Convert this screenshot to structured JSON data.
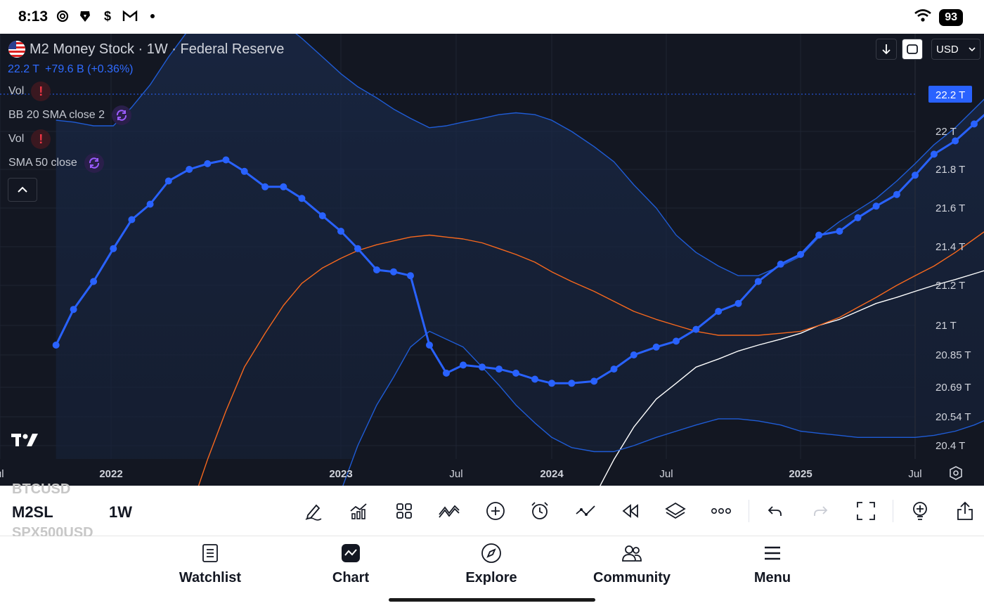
{
  "status_bar": {
    "time": "8:13",
    "battery": "93",
    "icons": [
      "openai-icon",
      "brave-icon",
      "dollar-icon",
      "gmail-icon",
      "dot-icon",
      "wifi-icon"
    ]
  },
  "chart_header": {
    "title": "M2 Money Stock · 1W · Federal Reserve",
    "last_value": "22.2 T",
    "change": "+79.6 B (+0.36%)",
    "indicators": [
      {
        "label": "Vol",
        "status": "error"
      },
      {
        "label": "BB 20 SMA close 2",
        "status": "loading"
      },
      {
        "label": "Vol",
        "status": "error"
      },
      {
        "label": "SMA 50 close",
        "status": "loading"
      }
    ],
    "currency": "USD"
  },
  "chart_data": {
    "type": "line",
    "title": "M2 Money Stock · 1W · Federal Reserve",
    "y_unit": "T",
    "yticks": [
      "22 T",
      "21.8 T",
      "21.6 T",
      "21.4 T",
      "21.2 T",
      "21 T",
      "20.85 T",
      "20.69 T",
      "20.54 T",
      "20.4 T"
    ],
    "xticks": [
      "Jul",
      "2022",
      "2023",
      "Jul",
      "2024",
      "Jul",
      "2025",
      "Jul"
    ],
    "last_price_label": "22.2 T",
    "series": [
      {
        "name": "M2SL",
        "color": "#2962ff",
        "markers": true,
        "points": [
          [
            2021.78,
            20.9
          ],
          [
            2021.85,
            21.08
          ],
          [
            2021.93,
            21.22
          ],
          [
            2022.01,
            21.39
          ],
          [
            2022.09,
            21.54
          ],
          [
            2022.17,
            21.62
          ],
          [
            2022.25,
            21.74
          ],
          [
            2022.34,
            21.8
          ],
          [
            2022.42,
            21.83
          ],
          [
            2022.5,
            21.85
          ],
          [
            2022.58,
            21.79
          ],
          [
            2022.67,
            21.71
          ],
          [
            2022.75,
            21.71
          ],
          [
            2022.83,
            21.65
          ],
          [
            2022.92,
            21.56
          ],
          [
            2023.0,
            21.48
          ],
          [
            2023.08,
            21.39
          ],
          [
            2023.17,
            21.28
          ],
          [
            2023.25,
            21.27
          ],
          [
            2023.33,
            21.25
          ],
          [
            2023.42,
            20.9
          ],
          [
            2023.5,
            20.76
          ],
          [
            2023.58,
            20.8
          ],
          [
            2023.67,
            20.79
          ],
          [
            2023.75,
            20.78
          ],
          [
            2023.83,
            20.76
          ],
          [
            2023.92,
            20.73
          ],
          [
            2024.0,
            20.71
          ],
          [
            2024.08,
            20.71
          ],
          [
            2024.17,
            20.72
          ],
          [
            2024.25,
            20.78
          ],
          [
            2024.33,
            20.85
          ],
          [
            2024.42,
            20.89
          ],
          [
            2024.5,
            20.92
          ],
          [
            2024.58,
            20.98
          ],
          [
            2024.67,
            21.07
          ],
          [
            2024.75,
            21.11
          ],
          [
            2024.83,
            21.22
          ],
          [
            2024.92,
            21.31
          ],
          [
            2025.0,
            21.36
          ],
          [
            2025.08,
            21.46
          ],
          [
            2025.17,
            21.48
          ],
          [
            2025.25,
            21.55
          ],
          [
            2025.33,
            21.61
          ],
          [
            2025.42,
            21.67
          ],
          [
            2025.5,
            21.77
          ],
          [
            2025.58,
            21.88
          ],
          [
            2025.67,
            21.95
          ],
          [
            2025.75,
            22.04
          ],
          [
            2025.83,
            22.13
          ],
          [
            2025.92,
            22.2
          ]
        ]
      },
      {
        "name": "BB upper",
        "color": "#1f5cd6",
        "points": [
          [
            2021.78,
            22.06
          ],
          [
            2021.85,
            22.05
          ],
          [
            2021.93,
            22.03
          ],
          [
            2022.01,
            22.03
          ],
          [
            2022.09,
            22.13
          ],
          [
            2022.17,
            22.25
          ],
          [
            2022.25,
            22.4
          ],
          [
            2022.34,
            22.55
          ],
          [
            2022.42,
            22.7
          ],
          [
            2022.5,
            22.72
          ],
          [
            2022.58,
            22.68
          ],
          [
            2022.67,
            22.63
          ],
          [
            2022.75,
            22.58
          ],
          [
            2022.83,
            22.5
          ],
          [
            2022.92,
            22.4
          ],
          [
            2023.0,
            22.31
          ],
          [
            2023.08,
            22.24
          ],
          [
            2023.17,
            22.18
          ],
          [
            2023.25,
            22.12
          ],
          [
            2023.33,
            22.07
          ],
          [
            2023.42,
            22.02
          ],
          [
            2023.5,
            22.03
          ],
          [
            2023.58,
            22.05
          ],
          [
            2023.67,
            22.07
          ],
          [
            2023.75,
            22.09
          ],
          [
            2023.83,
            22.1
          ],
          [
            2023.92,
            22.09
          ],
          [
            2024.0,
            22.06
          ],
          [
            2024.08,
            22.0
          ],
          [
            2024.17,
            21.92
          ],
          [
            2024.25,
            21.84
          ],
          [
            2024.33,
            21.72
          ],
          [
            2024.42,
            21.6
          ],
          [
            2024.5,
            21.46
          ],
          [
            2024.58,
            21.37
          ],
          [
            2024.67,
            21.3
          ],
          [
            2024.75,
            21.25
          ],
          [
            2024.83,
            21.25
          ],
          [
            2024.92,
            21.3
          ],
          [
            2025.0,
            21.35
          ],
          [
            2025.08,
            21.45
          ],
          [
            2025.17,
            21.53
          ],
          [
            2025.25,
            21.59
          ],
          [
            2025.33,
            21.65
          ],
          [
            2025.42,
            21.74
          ],
          [
            2025.5,
            21.83
          ],
          [
            2025.58,
            21.93
          ],
          [
            2025.67,
            22.02
          ],
          [
            2025.75,
            22.12
          ],
          [
            2025.83,
            22.22
          ],
          [
            2025.92,
            22.28
          ]
        ]
      },
      {
        "name": "BB lower",
        "color": "#1f5cd6",
        "points": [
          [
            2022.92,
            19.95
          ],
          [
            2023.0,
            20.17
          ],
          [
            2023.08,
            20.4
          ],
          [
            2023.17,
            20.6
          ],
          [
            2023.25,
            20.74
          ],
          [
            2023.33,
            20.89
          ],
          [
            2023.42,
            20.97
          ],
          [
            2023.5,
            20.93
          ],
          [
            2023.58,
            20.89
          ],
          [
            2023.67,
            20.79
          ],
          [
            2023.75,
            20.7
          ],
          [
            2023.83,
            20.6
          ],
          [
            2023.92,
            20.51
          ],
          [
            2024.0,
            20.44
          ],
          [
            2024.08,
            20.39
          ],
          [
            2024.17,
            20.37
          ],
          [
            2024.25,
            20.37
          ],
          [
            2024.33,
            20.4
          ],
          [
            2024.42,
            20.44
          ],
          [
            2024.5,
            20.47
          ],
          [
            2024.58,
            20.5
          ],
          [
            2024.67,
            20.53
          ],
          [
            2024.75,
            20.53
          ],
          [
            2024.83,
            20.52
          ],
          [
            2024.92,
            20.5
          ],
          [
            2025.0,
            20.47
          ],
          [
            2025.08,
            20.46
          ],
          [
            2025.17,
            20.45
          ],
          [
            2025.25,
            20.44
          ],
          [
            2025.33,
            20.44
          ],
          [
            2025.42,
            20.44
          ],
          [
            2025.5,
            20.44
          ],
          [
            2025.58,
            20.45
          ],
          [
            2025.67,
            20.47
          ],
          [
            2025.75,
            20.5
          ],
          [
            2025.83,
            20.54
          ],
          [
            2025.92,
            20.58
          ]
        ]
      },
      {
        "name": "BB basis",
        "color": "#f7681d",
        "points": [
          [
            2022.17,
            19.55
          ],
          [
            2022.25,
            19.78
          ],
          [
            2022.34,
            20.06
          ],
          [
            2022.42,
            20.33
          ],
          [
            2022.5,
            20.57
          ],
          [
            2022.58,
            20.79
          ],
          [
            2022.67,
            20.96
          ],
          [
            2022.75,
            21.1
          ],
          [
            2022.83,
            21.21
          ],
          [
            2022.92,
            21.29
          ],
          [
            2023.0,
            21.34
          ],
          [
            2023.08,
            21.38
          ],
          [
            2023.17,
            21.41
          ],
          [
            2023.25,
            21.43
          ],
          [
            2023.33,
            21.45
          ],
          [
            2023.42,
            21.46
          ],
          [
            2023.5,
            21.45
          ],
          [
            2023.58,
            21.44
          ],
          [
            2023.67,
            21.42
          ],
          [
            2023.75,
            21.39
          ],
          [
            2023.83,
            21.36
          ],
          [
            2023.92,
            21.32
          ],
          [
            2024.0,
            21.27
          ],
          [
            2024.08,
            21.22
          ],
          [
            2024.17,
            21.17
          ],
          [
            2024.25,
            21.12
          ],
          [
            2024.33,
            21.07
          ],
          [
            2024.42,
            21.03
          ],
          [
            2024.5,
            21.0
          ],
          [
            2024.58,
            20.97
          ],
          [
            2024.67,
            20.95
          ],
          [
            2024.75,
            20.95
          ],
          [
            2024.83,
            20.95
          ],
          [
            2024.92,
            20.96
          ],
          [
            2025.0,
            20.97
          ],
          [
            2025.08,
            21.0
          ],
          [
            2025.17,
            21.04
          ],
          [
            2025.25,
            21.09
          ],
          [
            2025.33,
            21.14
          ],
          [
            2025.42,
            21.2
          ],
          [
            2025.5,
            21.25
          ],
          [
            2025.58,
            21.3
          ],
          [
            2025.67,
            21.37
          ],
          [
            2025.75,
            21.44
          ],
          [
            2025.83,
            21.51
          ],
          [
            2025.92,
            21.58
          ]
        ]
      },
      {
        "name": "SMA 50",
        "color": "#ffffff",
        "points": [
          [
            2024.17,
            20.14
          ],
          [
            2024.25,
            20.33
          ],
          [
            2024.33,
            20.49
          ],
          [
            2024.42,
            20.63
          ],
          [
            2024.5,
            20.71
          ],
          [
            2024.58,
            20.79
          ],
          [
            2024.67,
            20.83
          ],
          [
            2024.75,
            20.87
          ],
          [
            2024.83,
            20.9
          ],
          [
            2024.92,
            20.93
          ],
          [
            2025.0,
            20.96
          ],
          [
            2025.08,
            21.0
          ],
          [
            2025.17,
            21.03
          ],
          [
            2025.25,
            21.07
          ],
          [
            2025.33,
            21.11
          ],
          [
            2025.42,
            21.14
          ],
          [
            2025.5,
            21.17
          ],
          [
            2025.58,
            21.2
          ],
          [
            2025.67,
            21.23
          ],
          [
            2025.75,
            21.26
          ],
          [
            2025.83,
            21.29
          ],
          [
            2025.92,
            21.32
          ]
        ]
      }
    ]
  },
  "toolbar": {
    "symbol_above": "BTCUSD",
    "symbol": "M2SL",
    "symbol_below": "SPX500USD",
    "timeframe": "1W"
  },
  "bottom_nav": [
    {
      "label": "Watchlist",
      "icon": "watchlist-icon"
    },
    {
      "label": "Chart",
      "icon": "chart-icon"
    },
    {
      "label": "Explore",
      "icon": "compass-icon"
    },
    {
      "label": "Community",
      "icon": "community-icon"
    },
    {
      "label": "Menu",
      "icon": "menu-icon"
    }
  ],
  "colors": {
    "accent": "#2962ff",
    "background": "#131722",
    "orange": "#f7681d"
  }
}
